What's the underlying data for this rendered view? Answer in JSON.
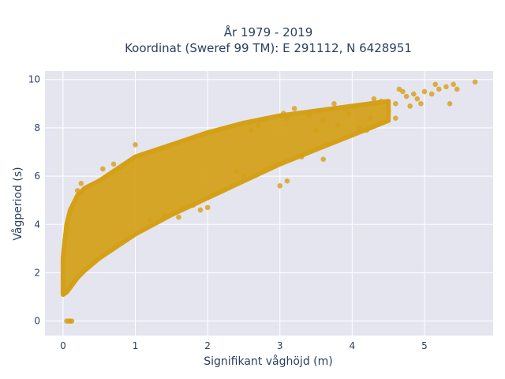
{
  "chart_data": {
    "type": "scatter",
    "title_line1": "År 1979 - 2019",
    "title_line2": "Koordinat (Sweref 99 TM): E 291112, N 6428951",
    "xlabel": "Signifikant våghöjd (m)",
    "ylabel": "Vågperiod (s)",
    "xlim": [
      -0.25,
      5.95
    ],
    "ylim": [
      -0.6,
      10.35
    ],
    "xticks": [
      0,
      1,
      2,
      3,
      4,
      5
    ],
    "yticks": [
      0,
      2,
      4,
      6,
      8,
      10
    ],
    "grid": true,
    "legend": "none",
    "marker_color": "#d4a017",
    "background_color": "#e5e5f0",
    "density_band": {
      "description": "dense cloud of points approximated by envelope",
      "x": [
        0.0,
        0.05,
        0.1,
        0.2,
        0.3,
        0.5,
        0.75,
        1.0,
        1.5,
        2.0,
        2.5,
        3.0,
        3.5,
        4.0,
        4.5
      ],
      "y_low": [
        1.1,
        1.2,
        1.4,
        1.8,
        2.1,
        2.6,
        3.1,
        3.6,
        4.4,
        5.1,
        5.8,
        6.5,
        7.1,
        7.7,
        8.3
      ],
      "y_high": [
        2.6,
        4.0,
        4.6,
        5.2,
        5.5,
        5.8,
        6.3,
        6.8,
        7.3,
        7.8,
        8.2,
        8.5,
        8.7,
        8.9,
        9.1
      ]
    },
    "points": [
      [
        0.05,
        0.0
      ],
      [
        0.08,
        0.0
      ],
      [
        0.1,
        0.0
      ],
      [
        0.12,
        0.0
      ],
      [
        0.2,
        5.4
      ],
      [
        0.25,
        5.7
      ],
      [
        0.55,
        6.3
      ],
      [
        0.7,
        6.5
      ],
      [
        1.0,
        7.3
      ],
      [
        1.1,
        6.9
      ],
      [
        1.2,
        4.2
      ],
      [
        1.4,
        4.4
      ],
      [
        1.6,
        4.3
      ],
      [
        1.8,
        4.8
      ],
      [
        1.9,
        4.6
      ],
      [
        2.0,
        4.7
      ],
      [
        2.4,
        6.2
      ],
      [
        2.5,
        6.0
      ],
      [
        2.8,
        6.3
      ],
      [
        2.7,
        8.1
      ],
      [
        2.6,
        7.9
      ],
      [
        3.0,
        5.6
      ],
      [
        3.1,
        5.8
      ],
      [
        3.3,
        6.8
      ],
      [
        3.1,
        8.4
      ],
      [
        3.05,
        8.6
      ],
      [
        3.2,
        8.8
      ],
      [
        3.5,
        7.9
      ],
      [
        3.6,
        8.3
      ],
      [
        3.4,
        8.5
      ],
      [
        3.6,
        6.7
      ],
      [
        3.75,
        9.0
      ],
      [
        3.9,
        8.8
      ],
      [
        4.1,
        8.0
      ],
      [
        4.2,
        7.9
      ],
      [
        4.3,
        9.2
      ],
      [
        4.4,
        8.2
      ],
      [
        4.5,
        8.7
      ],
      [
        4.6,
        8.4
      ],
      [
        4.6,
        9.0
      ],
      [
        4.75,
        9.3
      ],
      [
        4.8,
        8.9
      ],
      [
        4.9,
        9.2
      ],
      [
        4.95,
        9.0
      ],
      [
        5.0,
        9.5
      ],
      [
        5.1,
        9.4
      ],
      [
        5.15,
        9.8
      ],
      [
        5.3,
        9.7
      ],
      [
        5.35,
        9.0
      ],
      [
        5.4,
        9.8
      ],
      [
        5.45,
        9.6
      ],
      [
        5.7,
        9.9
      ],
      [
        4.65,
        9.6
      ],
      [
        4.7,
        9.5
      ],
      [
        4.85,
        9.4
      ],
      [
        5.2,
        9.6
      ],
      [
        4.4,
        9.1
      ],
      [
        3.95,
        8.6
      ],
      [
        4.25,
        8.4
      ],
      [
        3.8,
        8.1
      ]
    ]
  }
}
